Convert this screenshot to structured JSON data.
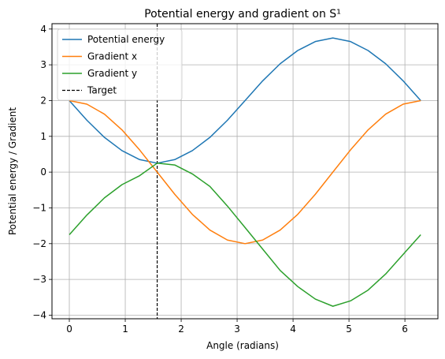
{
  "chart_data": {
    "type": "line",
    "title": "Potential energy and gradient on S¹",
    "xlabel": "Angle (radians)",
    "ylabel": "Potential energy / Gradient",
    "xlim": [
      -0.31,
      6.59
    ],
    "ylim": [
      -4.1,
      4.15
    ],
    "xticks": [
      0,
      1,
      2,
      3,
      4,
      5,
      6
    ],
    "yticks": [
      -4,
      -3,
      -2,
      -1,
      0,
      1,
      2,
      3,
      4
    ],
    "grid": true,
    "legend_position": "top-left",
    "series": [
      {
        "name": "Potential energy",
        "color": "#1f77b4",
        "x": [
          0,
          0.314,
          0.628,
          0.942,
          1.257,
          1.571,
          1.885,
          2.199,
          2.513,
          2.827,
          3.142,
          3.456,
          3.77,
          4.084,
          4.398,
          4.712,
          5.027,
          5.341,
          5.655,
          5.969,
          6.283
        ],
        "y": [
          2.0,
          1.45,
          0.97,
          0.6,
          0.35,
          0.25,
          0.35,
          0.6,
          0.97,
          1.45,
          2.0,
          2.55,
          3.03,
          3.4,
          3.65,
          3.75,
          3.65,
          3.4,
          3.03,
          2.55,
          2.0
        ]
      },
      {
        "name": "Gradient x",
        "color": "#ff7f0e",
        "x": [
          0,
          0.314,
          0.628,
          0.942,
          1.257,
          1.571,
          1.885,
          2.199,
          2.513,
          2.827,
          3.142,
          3.456,
          3.77,
          4.084,
          4.398,
          4.712,
          5.027,
          5.341,
          5.655,
          5.969,
          6.283
        ],
        "y": [
          2.0,
          1.9,
          1.62,
          1.18,
          0.62,
          0.0,
          -0.62,
          -1.18,
          -1.62,
          -1.9,
          -2.0,
          -1.9,
          -1.62,
          -1.18,
          -0.62,
          0.0,
          0.62,
          1.18,
          1.62,
          1.9,
          2.0
        ]
      },
      {
        "name": "Gradient y",
        "color": "#2ca02c",
        "x": [
          0,
          0.314,
          0.628,
          0.942,
          1.257,
          1.571,
          1.885,
          2.199,
          2.513,
          2.827,
          3.142,
          3.456,
          3.77,
          4.084,
          4.398,
          4.712,
          5.027,
          5.341,
          5.655,
          5.969,
          6.283
        ],
        "y": [
          -1.75,
          -1.2,
          -0.72,
          -0.35,
          -0.1,
          0.25,
          0.2,
          -0.05,
          -0.4,
          -0.95,
          -1.55,
          -2.15,
          -2.75,
          -3.2,
          -3.55,
          -3.75,
          -3.6,
          -3.3,
          -2.85,
          -2.3,
          -1.75
        ]
      }
    ],
    "vline": {
      "name": "Target",
      "x": 1.571,
      "color": "#000000",
      "style": "dashed"
    }
  }
}
